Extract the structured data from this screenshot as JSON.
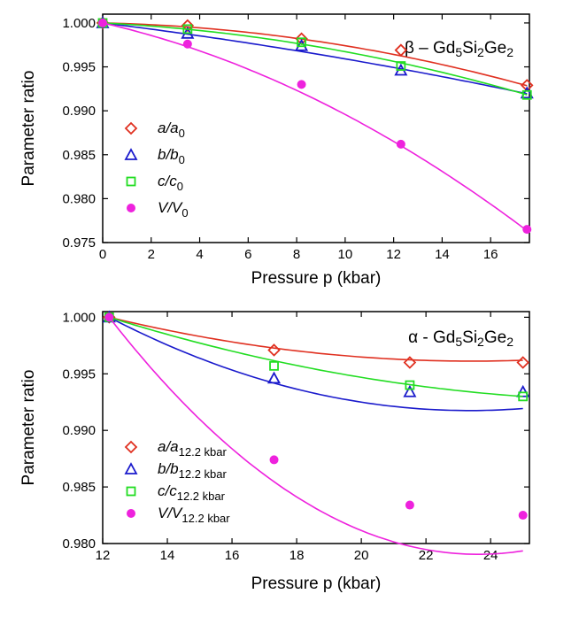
{
  "colors": {
    "a": "#e03020",
    "b": "#1a1acc",
    "c": "#22dd22",
    "V": "#ee22dd"
  },
  "chart_data": [
    {
      "type": "scatter",
      "title_main": "β – Gd",
      "title_sub1": "5",
      "title_mid": "Si",
      "title_sub2": "2",
      "title_end": "Ge",
      "title_sub3": "2",
      "xlabel": "Pressure p (kbar)",
      "ylabel": "Parameter ratio",
      "xlim": [
        0,
        17.6
      ],
      "ylim": [
        0.975,
        1.001
      ],
      "xticks": [
        0,
        2,
        4,
        6,
        8,
        10,
        12,
        14,
        16
      ],
      "yticks": [
        0.975,
        0.98,
        0.985,
        0.99,
        0.995,
        1.0
      ],
      "ytick_labels": [
        "0.975",
        "0.980",
        "0.985",
        "0.990",
        "0.995",
        "1.000"
      ],
      "series": [
        {
          "key": "a",
          "name": "a/a",
          "sub": "0",
          "marker": "diamond",
          "x": [
            0,
            3.5,
            8.2,
            12.3,
            17.5
          ],
          "y": [
            1.0,
            0.9997,
            0.9982,
            0.9969,
            0.9929
          ],
          "fit": [
            1.0,
            -6e-05,
            -1.99e-05
          ]
        },
        {
          "key": "b",
          "name": "b/b",
          "sub": "0",
          "marker": "triangle",
          "x": [
            0,
            3.5,
            8.2,
            12.3,
            17.5
          ],
          "y": [
            1.0,
            0.9988,
            0.9974,
            0.9946,
            0.992
          ],
          "fit": [
            1.0,
            -0.00034,
            -6.9e-06
          ]
        },
        {
          "key": "c",
          "name": "c/c",
          "sub": "0",
          "marker": "square",
          "x": [
            0,
            3.5,
            8.2,
            12.3,
            17.5
          ],
          "y": [
            1.0,
            0.9993,
            0.9978,
            0.9951,
            0.9918
          ],
          "fit": [
            1.0,
            -0.00014,
            -1.87e-05
          ]
        },
        {
          "key": "V",
          "name": "V/V",
          "sub": "0",
          "marker": "circle",
          "x": [
            0,
            3.5,
            8.2,
            12.3,
            17.5
          ],
          "y": [
            1.0,
            0.9976,
            0.993,
            0.9862,
            0.9765
          ],
          "fit": [
            1.0,
            -0.00063,
            -4.12e-05
          ]
        }
      ]
    },
    {
      "type": "scatter",
      "title_main": "α - Gd",
      "title_sub1": "5",
      "title_mid": "Si",
      "title_sub2": "2",
      "title_end": "Ge",
      "title_sub3": "2",
      "xlabel": "Pressure p (kbar)",
      "ylabel": "Parameter ratio",
      "xlim": [
        12,
        25.2
      ],
      "ylim": [
        0.98,
        1.0005
      ],
      "xticks": [
        12,
        14,
        16,
        18,
        20,
        22,
        24
      ],
      "yticks": [
        0.98,
        0.985,
        0.99,
        0.995,
        1.0
      ],
      "ytick_labels": [
        "0.980",
        "0.985",
        "0.990",
        "0.995",
        "1.000"
      ],
      "series": [
        {
          "key": "a",
          "name": "a/a",
          "sub": "12.2 kbar",
          "marker": "diamond",
          "x": [
            12.2,
            17.3,
            21.5,
            25
          ],
          "y": [
            1.0,
            0.9971,
            0.996,
            0.996
          ],
          "fit": [
            1.0,
            -0.00069,
            3.07e-05
          ]
        },
        {
          "key": "b",
          "name": "b/b",
          "sub": "12.2 kbar",
          "marker": "triangle",
          "x": [
            12.2,
            17.3,
            21.5,
            25
          ],
          "y": [
            1.0,
            0.9946,
            0.9934,
            0.9934
          ],
          "fit": [
            1.0,
            -0.00148,
            6.64e-05
          ]
        },
        {
          "key": "c",
          "name": "c/c",
          "sub": "12.2 kbar",
          "marker": "square",
          "x": [
            12.2,
            17.3,
            21.5,
            25
          ],
          "y": [
            1.0,
            0.9957,
            0.994,
            0.993
          ],
          "fit": [
            1.0,
            -0.00089,
            2.68e-05
          ]
        },
        {
          "key": "V",
          "name": "V/V",
          "sub": "12.2 kbar",
          "marker": "circle",
          "x": [
            12.2,
            17.3,
            21.5,
            25
          ],
          "y": [
            1.0,
            0.9874,
            0.9834,
            0.9825
          ],
          "fit": [
            1.0,
            -0.00367,
            0.0001607
          ]
        }
      ]
    }
  ]
}
